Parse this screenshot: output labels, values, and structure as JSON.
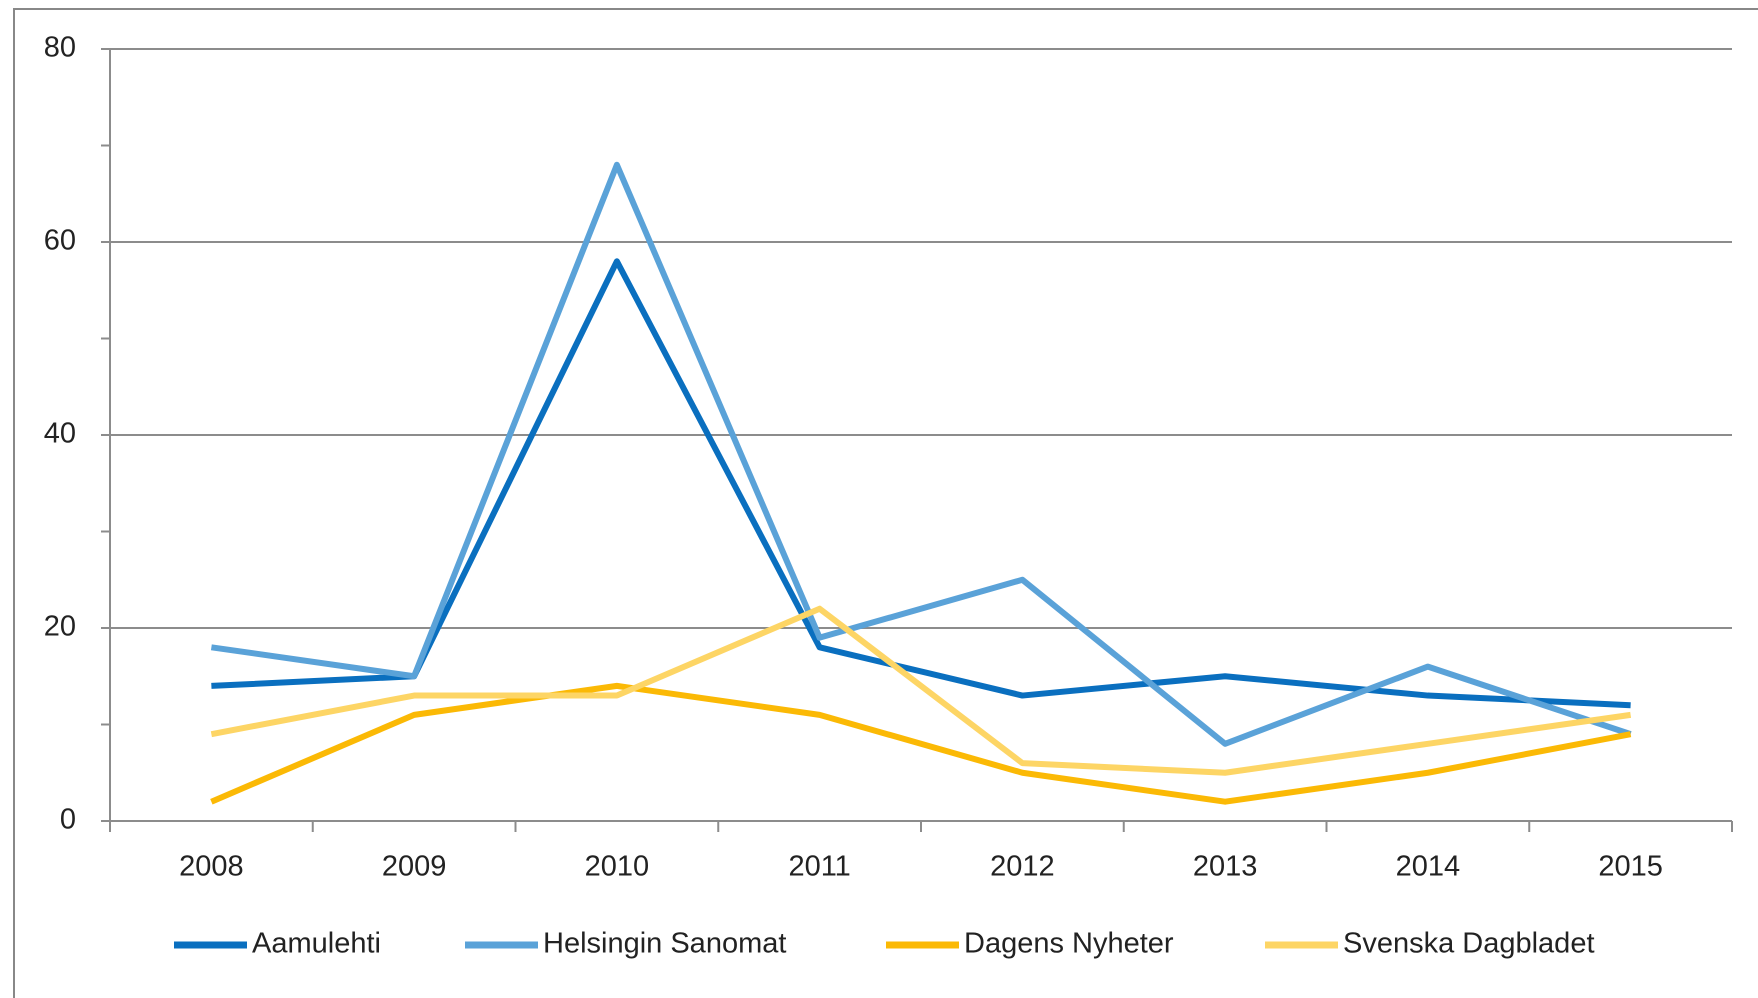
{
  "chart_data": {
    "type": "line",
    "categories": [
      "2008",
      "2009",
      "2010",
      "2011",
      "2012",
      "2013",
      "2014",
      "2015"
    ],
    "series": [
      {
        "name": "Aamulehti",
        "color": "#0a6fbf",
        "values": [
          14,
          15,
          58,
          18,
          13,
          15,
          13,
          12
        ]
      },
      {
        "name": "Helsingin Sanomat",
        "color": "#5aa2d8",
        "values": [
          18,
          15,
          68,
          19,
          25,
          8,
          16,
          9
        ]
      },
      {
        "name": "Dagens Nyheter",
        "color": "#fbb905",
        "values": [
          2,
          11,
          14,
          11,
          5,
          2,
          5,
          9
        ]
      },
      {
        "name": "Svenska Dagbladet",
        "color": "#fdd565",
        "values": [
          9,
          13,
          13,
          22,
          6,
          5,
          8,
          11
        ]
      }
    ],
    "ylim": [
      0,
      80
    ],
    "yticks": [
      0,
      20,
      40,
      60,
      80
    ],
    "yminorticks": [
      10,
      30,
      50,
      70
    ],
    "grid": true,
    "legend": "bottom"
  }
}
